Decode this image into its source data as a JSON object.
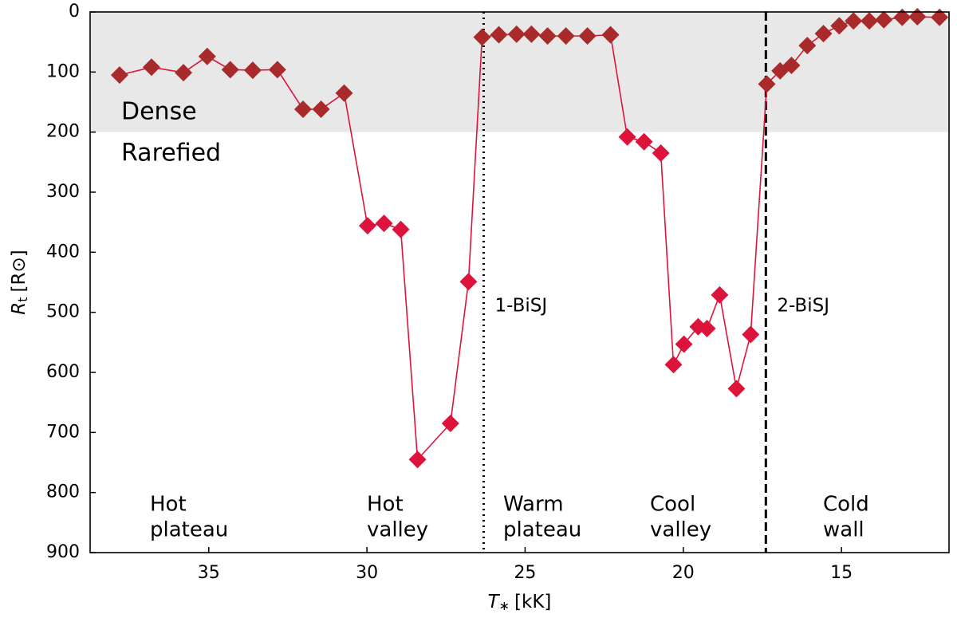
{
  "chart_data": {
    "type": "line",
    "xlabel": {
      "symbol": "T",
      "sub": "∗",
      "unit": "[kK]"
    },
    "ylabel": {
      "symbol": "R",
      "sub": "t",
      "unit": "[R⊙]"
    },
    "xlim": [
      38.75,
      11.6
    ],
    "ylim": [
      900,
      0
    ],
    "xticks": [
      35,
      30,
      25,
      20,
      15
    ],
    "yticks": [
      0,
      100,
      200,
      300,
      400,
      500,
      600,
      700,
      800,
      900
    ],
    "shade": {
      "range": [
        0,
        200
      ],
      "color": "#e8e8e8"
    },
    "line_color": "#dc143c",
    "classes": [
      {
        "name": "Dense",
        "color": "#a82a2a"
      },
      {
        "name": "Rarefied",
        "color": "#dc143c"
      }
    ],
    "x": [
      37.82,
      36.81,
      35.8,
      35.05,
      34.32,
      33.61,
      32.83,
      32.02,
      31.45,
      30.72,
      29.98,
      29.46,
      28.93,
      28.4,
      27.36,
      26.79,
      26.36,
      25.83,
      25.27,
      24.8,
      24.29,
      23.71,
      23.03,
      22.3,
      21.77,
      21.24,
      20.71,
      20.31,
      19.98,
      19.53,
      19.25,
      18.85,
      18.32,
      17.87,
      17.36,
      16.94,
      16.58,
      16.08,
      15.57,
      15.07,
      14.62,
      14.12,
      13.66,
      13.08,
      12.6,
      11.9
    ],
    "values": [
      105,
      92,
      101,
      74,
      96,
      97,
      96,
      162,
      162,
      135,
      356,
      352,
      362,
      745,
      685,
      449,
      42,
      38,
      37,
      37,
      40,
      40,
      40,
      38,
      208,
      216,
      235,
      587,
      553,
      524,
      527,
      471,
      627,
      537,
      120,
      98,
      89,
      56,
      36,
      23,
      15,
      15,
      13,
      9,
      8,
      9
    ],
    "vlines": [
      {
        "x": 26.31,
        "label": "1-BiSJ",
        "style": "dotted"
      },
      {
        "x": 17.39,
        "label": "2-BiSJ",
        "style": "dashed"
      }
    ],
    "regions": [
      {
        "lines": [
          "Hot",
          "plateau"
        ],
        "color": "#3b3889"
      },
      {
        "lines": [
          "Hot",
          "valley"
        ],
        "color": "#2fbf70"
      },
      {
        "lines": [
          "Warm",
          "plateau"
        ],
        "color": "#9a9a9a"
      },
      {
        "lines": [
          "Cool",
          "valley"
        ],
        "color": "#e3a21a"
      },
      {
        "lines": [
          "Cold",
          "wall"
        ],
        "color": "#b22222"
      }
    ]
  }
}
